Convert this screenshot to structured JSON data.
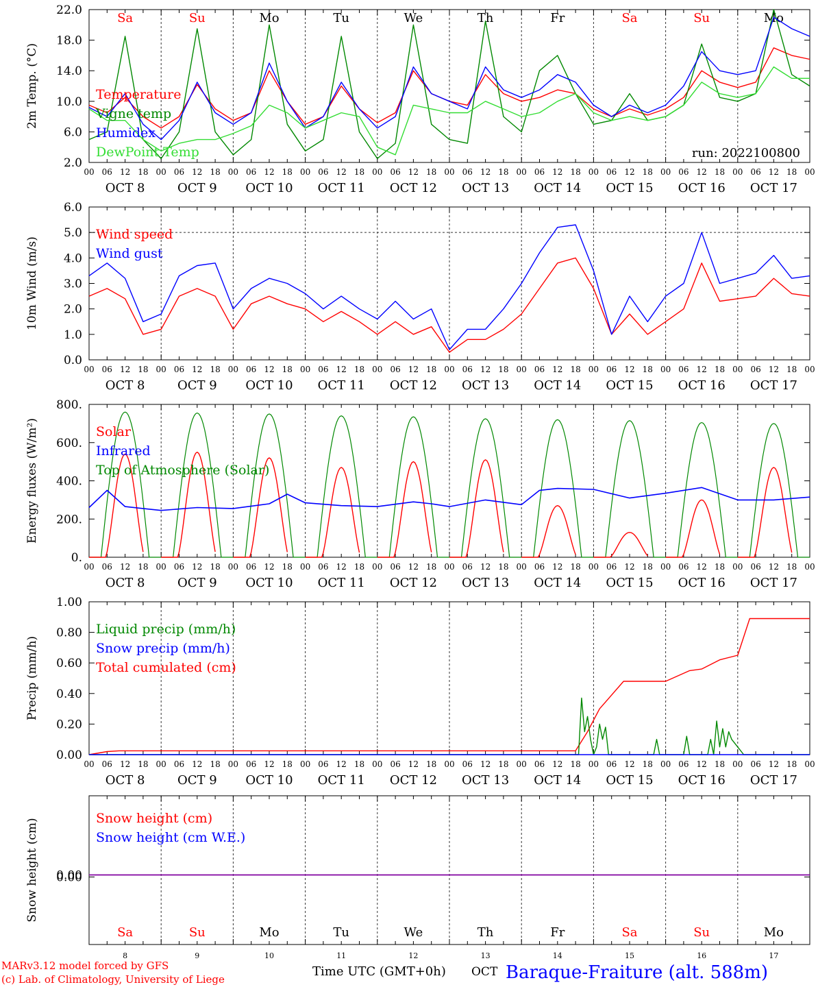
{
  "colors": {
    "red": "#ff0000",
    "green": "#008800",
    "blue": "#0000ff",
    "lightgreen": "#33dd33",
    "purple": "#8000a0"
  },
  "days": {
    "weekdays": [
      "Sa",
      "Su",
      "Mo",
      "Tu",
      "We",
      "Th",
      "Fr",
      "Sa",
      "Su",
      "Mo"
    ],
    "weekend": [
      true,
      true,
      false,
      false,
      false,
      false,
      false,
      true,
      true,
      false
    ],
    "dates": [
      "OCT  8",
      "OCT  9",
      "OCT 10",
      "OCT 11",
      "OCT 12",
      "OCT 13",
      "OCT 14",
      "OCT 15",
      "OCT 16",
      "OCT 17"
    ],
    "day_numbers": [
      "8",
      "9",
      "10",
      "11",
      "12",
      "13",
      "14",
      "15",
      "16",
      "17"
    ],
    "hour_ticks": [
      "00",
      "06",
      "12",
      "18"
    ],
    "final_hour": "00"
  },
  "footer": {
    "credit1": "MARv3.12 model forced by GFS",
    "credit2": "(c) Lab. of Climatology, University of Liege",
    "time_label": "Time UTC (GMT+0h)",
    "month": "OCT",
    "station": "Baraque-Fraiture (alt. 588m)"
  },
  "chart_data": [
    {
      "type": "line",
      "ylabel": "2m Temp. (°C)",
      "ylim": [
        2.0,
        22.0
      ],
      "yticks": [
        "2.0",
        "6.0",
        "10.0",
        "14.0",
        "18.0",
        "22.0"
      ],
      "ytick_values": [
        2,
        6,
        10,
        14,
        18,
        22
      ],
      "note": "run: 2022100800",
      "legend": [
        "Temperature",
        "Vigne temp",
        "Humidex",
        "DewPoint Temp"
      ],
      "x_hours": [
        0,
        6,
        12,
        18,
        24,
        30,
        36,
        42,
        48,
        54,
        60,
        66,
        72,
        78,
        84,
        90,
        96,
        102,
        108,
        114,
        120,
        126,
        132,
        138,
        144,
        150,
        156,
        162,
        168,
        174,
        180,
        186,
        192,
        198,
        204,
        210,
        216,
        222,
        228,
        234,
        240
      ],
      "series": [
        {
          "name": "Temperature",
          "color": "red",
          "values": [
            9.5,
            8.5,
            10.5,
            8.0,
            6.5,
            8.0,
            12.2,
            9.0,
            7.5,
            8.5,
            14.0,
            10.0,
            7.0,
            8.0,
            12.0,
            9.0,
            7.2,
            8.5,
            14.0,
            11.0,
            10.0,
            9.5,
            13.5,
            11.0,
            10.0,
            10.5,
            11.5,
            11.0,
            9.0,
            8.0,
            9.0,
            8.2,
            9.0,
            10.5,
            14.0,
            12.5,
            11.8,
            12.5,
            17.0,
            16.0,
            15.5
          ]
        },
        {
          "name": "Vigne temp",
          "color": "green",
          "values": [
            5.0,
            6.0,
            18.5,
            5.0,
            2.5,
            6.0,
            19.5,
            6.0,
            3.0,
            5.0,
            20.0,
            7.0,
            3.5,
            5.0,
            18.5,
            6.0,
            2.5,
            4.5,
            20.0,
            7.0,
            5.0,
            4.5,
            20.5,
            8.0,
            6.0,
            14.0,
            16.0,
            11.0,
            7.0,
            7.5,
            11.0,
            7.5,
            8.0,
            9.5,
            17.5,
            10.5,
            10.0,
            11.0,
            22.0,
            13.5,
            12.0
          ]
        },
        {
          "name": "Humidex",
          "color": "blue",
          "values": [
            9.2,
            8.0,
            11.0,
            7.0,
            5.0,
            7.5,
            12.5,
            8.5,
            7.0,
            8.5,
            15.0,
            10.0,
            6.5,
            8.0,
            12.5,
            9.0,
            6.5,
            8.0,
            14.5,
            11.0,
            10.0,
            9.0,
            14.5,
            11.5,
            10.5,
            11.5,
            13.5,
            12.5,
            9.5,
            8.0,
            9.5,
            8.5,
            9.5,
            12.0,
            16.5,
            14.0,
            13.5,
            14.0,
            21.0,
            19.5,
            18.5
          ]
        },
        {
          "name": "DewPoint Temp",
          "color": "lightgreen",
          "values": [
            9.0,
            7.5,
            7.5,
            5.0,
            3.5,
            4.5,
            5.0,
            5.0,
            5.8,
            6.8,
            9.5,
            8.5,
            6.5,
            7.5,
            8.5,
            8.0,
            4.0,
            3.0,
            9.5,
            9.0,
            8.5,
            8.5,
            10.0,
            9.0,
            8.0,
            8.5,
            10.0,
            11.0,
            8.5,
            7.5,
            8.0,
            7.5,
            8.0,
            9.5,
            12.5,
            11.0,
            10.5,
            11.0,
            14.5,
            13.0,
            13.0
          ]
        }
      ]
    },
    {
      "type": "line",
      "ylabel": "10m Wind (m/s)",
      "ylim": [
        0.0,
        6.0
      ],
      "yticks": [
        "0.0",
        "1.0",
        "2.0",
        "3.0",
        "4.0",
        "5.0",
        "6.0"
      ],
      "ytick_values": [
        0,
        1,
        2,
        3,
        4,
        5,
        6
      ],
      "refline": 5.0,
      "legend": [
        "Wind speed",
        "Wind gust"
      ],
      "x_hours": [
        0,
        6,
        12,
        18,
        24,
        30,
        36,
        42,
        48,
        54,
        60,
        66,
        72,
        78,
        84,
        90,
        96,
        102,
        108,
        114,
        120,
        126,
        132,
        138,
        144,
        150,
        156,
        162,
        168,
        174,
        180,
        186,
        192,
        198,
        204,
        210,
        216,
        222,
        228,
        234,
        240
      ],
      "series": [
        {
          "name": "Wind speed",
          "color": "red",
          "values": [
            2.5,
            2.8,
            2.4,
            1.0,
            1.2,
            2.5,
            2.8,
            2.5,
            1.2,
            2.2,
            2.5,
            2.2,
            2.0,
            1.5,
            1.9,
            1.5,
            1.0,
            1.5,
            1.0,
            1.3,
            0.3,
            0.8,
            0.8,
            1.2,
            1.8,
            2.8,
            3.8,
            4.0,
            2.8,
            1.0,
            1.8,
            1.0,
            1.5,
            2.0,
            3.8,
            2.3,
            2.4,
            2.5,
            3.2,
            2.6,
            2.5
          ]
        },
        {
          "name": "Wind gust",
          "color": "blue",
          "values": [
            3.3,
            3.8,
            3.2,
            1.5,
            1.8,
            3.3,
            3.7,
            3.8,
            2.0,
            2.8,
            3.2,
            3.0,
            2.6,
            2.0,
            2.5,
            2.0,
            1.6,
            2.3,
            1.6,
            2.0,
            0.4,
            1.2,
            1.2,
            2.0,
            3.0,
            4.2,
            5.2,
            5.3,
            3.5,
            1.0,
            2.5,
            1.5,
            2.5,
            3.0,
            5.0,
            3.0,
            3.2,
            3.4,
            4.1,
            3.2,
            3.3
          ]
        }
      ]
    },
    {
      "type": "line",
      "ylabel": "Energy fluxes (W/m²)",
      "ylim": [
        0,
        800
      ],
      "yticks": [
        "0.",
        "200.",
        "400.",
        "600.",
        "800."
      ],
      "ytick_values": [
        0,
        200,
        400,
        600,
        800
      ],
      "legend": [
        "Solar",
        "Infrared",
        "Top of Atmosphere (Solar)"
      ],
      "solar_peaks": [
        540,
        550,
        520,
        470,
        500,
        510,
        270,
        130,
        300,
        470
      ],
      "toa_peaks": [
        760,
        755,
        750,
        740,
        735,
        725,
        720,
        715,
        705,
        700
      ],
      "infrared": {
        "x_hours": [
          0,
          6,
          12,
          18,
          24,
          36,
          48,
          60,
          66,
          72,
          84,
          96,
          108,
          114,
          120,
          132,
          144,
          150,
          156,
          168,
          180,
          192,
          204,
          216,
          228,
          240
        ],
        "values": [
          260,
          350,
          265,
          255,
          245,
          260,
          255,
          280,
          330,
          285,
          270,
          265,
          290,
          280,
          265,
          300,
          275,
          350,
          360,
          355,
          310,
          335,
          365,
          300,
          300,
          315
        ]
      }
    },
    {
      "type": "line",
      "ylabel": "Precip (mm/h)",
      "ylim": [
        0.0,
        1.0
      ],
      "yticks": [
        "0.00",
        "0.20",
        "0.40",
        "0.60",
        "0.80",
        "1.00"
      ],
      "ytick_values": [
        0,
        0.2,
        0.4,
        0.6,
        0.8,
        1.0
      ],
      "legend": [
        "Liquid precip (mm/h)",
        "Snow precip (mm/h)",
        "Total cumulated (cm)"
      ],
      "series": [
        {
          "name": "Total cumulated (cm)",
          "color": "red",
          "x_hours": [
            0,
            6,
            10,
            16,
            24,
            48,
            72,
            96,
            120,
            144,
            162,
            166,
            170,
            178,
            184,
            192,
            200,
            204,
            210,
            216,
            220,
            240
          ],
          "values": [
            0.0,
            0.02,
            0.025,
            0.025,
            0.025,
            0.025,
            0.025,
            0.025,
            0.025,
            0.025,
            0.025,
            0.15,
            0.3,
            0.48,
            0.48,
            0.48,
            0.55,
            0.56,
            0.62,
            0.65,
            0.89,
            0.89
          ]
        },
        {
          "name": "Liquid precip (mm/h)",
          "color": "green",
          "x_hours": [
            0,
            160,
            163,
            164,
            165,
            166,
            167,
            168,
            169,
            170,
            171,
            172,
            173,
            174,
            175,
            176,
            177,
            178,
            179,
            180,
            181,
            182,
            184,
            186,
            188,
            189,
            190,
            191,
            192,
            194,
            196,
            198,
            199,
            200,
            201,
            202,
            204,
            206,
            207,
            208,
            209,
            210,
            211,
            212,
            213,
            214,
            216,
            218,
            220,
            240
          ],
          "values": [
            0,
            0,
            0,
            0.37,
            0.15,
            0.25,
            0.1,
            0,
            0.05,
            0.2,
            0.1,
            0.18,
            0,
            0,
            0,
            0,
            0,
            0,
            0,
            0,
            0,
            0,
            0,
            0,
            0,
            0.1,
            0,
            0,
            0,
            0,
            0,
            0,
            0.12,
            0,
            0,
            0,
            0,
            0,
            0.1,
            0,
            0.22,
            0.05,
            0.17,
            0.05,
            0.15,
            0.1,
            0.05,
            0,
            0,
            0
          ]
        },
        {
          "name": "Snow precip (mm/h)",
          "color": "blue",
          "x_hours": [
            0,
            240
          ],
          "values": [
            0,
            0
          ]
        }
      ]
    },
    {
      "type": "line",
      "ylabel": "Snow height (cm)",
      "yticks": [
        "0.00"
      ],
      "ytick_values": [
        0
      ],
      "legend": [
        "Snow height (cm)",
        "Snow height (cm W.E.)"
      ],
      "series": [
        {
          "name": "Snow height (cm)",
          "color": "red",
          "x_hours": [
            0,
            240
          ],
          "values": [
            0,
            0
          ]
        },
        {
          "name": "Snow height (cm W.E.)",
          "color": "blue",
          "x_hours": [
            0,
            240
          ],
          "values": [
            0,
            0
          ]
        }
      ]
    }
  ]
}
